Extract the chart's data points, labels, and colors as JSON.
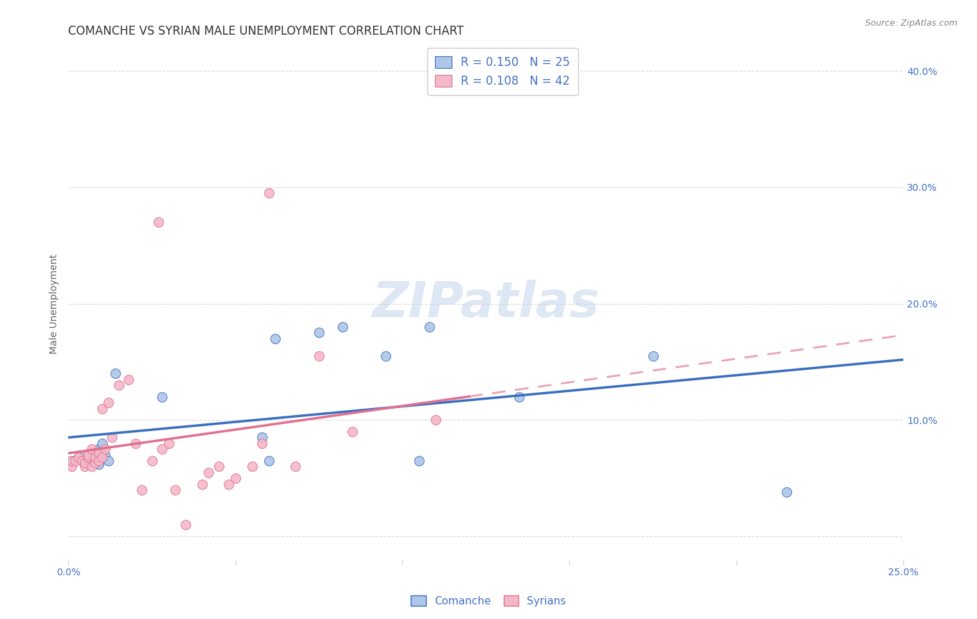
{
  "title": "COMANCHE VS SYRIAN MALE UNEMPLOYMENT CORRELATION CHART",
  "source": "Source: ZipAtlas.com",
  "ylabel": "Male Unemployment",
  "xlim": [
    0.0,
    0.25
  ],
  "ylim": [
    -0.02,
    0.42
  ],
  "comanche_color": "#aec6e8",
  "syrian_color": "#f4b8c8",
  "comanche_line_color": "#3a6fbf",
  "syrian_line_color": "#e07090",
  "legend_R1": "R = 0.150",
  "legend_N1": "N = 25",
  "legend_R2": "R = 0.108",
  "legend_N2": "N = 42",
  "watermark_text": "ZIPatlas",
  "comanche_x": [
    0.001,
    0.003,
    0.005,
    0.006,
    0.007,
    0.008,
    0.009,
    0.009,
    0.01,
    0.01,
    0.011,
    0.012,
    0.014,
    0.028,
    0.058,
    0.06,
    0.062,
    0.075,
    0.082,
    0.095,
    0.105,
    0.108,
    0.135,
    0.175,
    0.215
  ],
  "comanche_y": [
    0.065,
    0.068,
    0.07,
    0.068,
    0.065,
    0.07,
    0.062,
    0.075,
    0.068,
    0.08,
    0.07,
    0.065,
    0.14,
    0.12,
    0.085,
    0.065,
    0.17,
    0.175,
    0.18,
    0.155,
    0.065,
    0.18,
    0.12,
    0.155,
    0.038
  ],
  "syrian_x": [
    0.001,
    0.001,
    0.002,
    0.003,
    0.004,
    0.005,
    0.005,
    0.006,
    0.006,
    0.007,
    0.007,
    0.008,
    0.008,
    0.009,
    0.009,
    0.01,
    0.01,
    0.011,
    0.012,
    0.013,
    0.015,
    0.018,
    0.02,
    0.022,
    0.025,
    0.027,
    0.028,
    0.03,
    0.032,
    0.035,
    0.04,
    0.042,
    0.045,
    0.048,
    0.05,
    0.055,
    0.058,
    0.06,
    0.068,
    0.075,
    0.085,
    0.11
  ],
  "syrian_y": [
    0.06,
    0.065,
    0.065,
    0.068,
    0.065,
    0.06,
    0.063,
    0.068,
    0.07,
    0.06,
    0.075,
    0.063,
    0.068,
    0.072,
    0.065,
    0.068,
    0.11,
    0.075,
    0.115,
    0.085,
    0.13,
    0.135,
    0.08,
    0.04,
    0.065,
    0.27,
    0.075,
    0.08,
    0.04,
    0.01,
    0.045,
    0.055,
    0.06,
    0.045,
    0.05,
    0.06,
    0.08,
    0.295,
    0.06,
    0.155,
    0.09,
    0.1
  ],
  "background_color": "#ffffff",
  "grid_color": "#d8d8d8",
  "title_fontsize": 12,
  "axis_label_fontsize": 10,
  "tick_fontsize": 10,
  "legend_fontsize": 12,
  "watermark_fontsize": 52,
  "watermark_color": "#c8d8ee",
  "blue_text_color": "#4472c4"
}
